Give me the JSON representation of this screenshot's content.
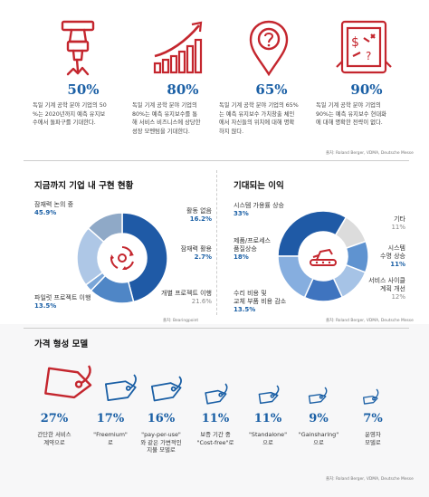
{
  "stats": [
    {
      "value": "50%",
      "desc": [
        "독일 기계 공학 분야 기업의 50",
        "%는 2020년까지 예측 유지보",
        "수에서 돌파구를 기대한다."
      ],
      "icon": "jackhammer-icon"
    },
    {
      "value": "80%",
      "desc": [
        "독일 기계 공학 분야 기업의",
        "80%는 예측 유지보수를 통",
        "해 서비스 비즈니스에 상당한",
        "성장 모멘텀을 기대한다."
      ],
      "icon": "growth-chart-icon"
    },
    {
      "value": "65%",
      "desc": [
        "독일 기계 공학 분야 기업의 65%",
        "는 예측 유지보수 가치창출 체인",
        "에서 자신들의 위치에 대해 명확",
        "하지 않다."
      ],
      "icon": "location-question-icon"
    },
    {
      "value": "90%",
      "desc": [
        "독일 기계 공학 분야 기업의",
        "90%는 예측 유지보수 현대화",
        "에 대해 명확한 전략이 없다."
      ],
      "icon": "tablet-strategy-icon"
    }
  ],
  "source_top": "출처: Roland Berger, VDMA, Deutsche Messe",
  "status_section": {
    "title": "지금까지 기업 내 구현 현황",
    "source": "출처: Bearingpoint"
  },
  "benefit_section": {
    "title": "기대되는 이익",
    "source": "출처: Roland Berger, VDMA, Deutsche Messe"
  },
  "pricing_section": {
    "title": "가격 형성 모델",
    "source": "출처: Roland Berger, VDMA, Deutsche Messe",
    "items": [
      {
        "value": "27%",
        "desc": [
          "간단한 서비스",
          "계약으로"
        ]
      },
      {
        "value": "17%",
        "desc": [
          "\"Freemium\"",
          "로"
        ]
      },
      {
        "value": "16%",
        "desc": [
          "\"pay-per-use\"",
          "와 같은 가변적인",
          "지불 모델로"
        ]
      },
      {
        "value": "11%",
        "desc": [
          "보증 기간 중",
          "\"Cost-free\"로"
        ]
      },
      {
        "value": "11%",
        "desc": [
          "\"Standalone\"",
          "으로"
        ]
      },
      {
        "value": "9%",
        "desc": [
          "\"Gainsharing\"",
          "으로"
        ]
      },
      {
        "value": "7%",
        "desc": [
          "운영자",
          "모델로"
        ]
      }
    ]
  },
  "chart_data": [
    {
      "type": "pie",
      "title": "지금까지 기업 내 구현 현황",
      "labels": [
        "잠재력 논의 중",
        "활동 없음",
        "잠재력 활용",
        "개별 프로젝트 이행",
        "파일럿 프로젝트 이행"
      ],
      "values": [
        45.9,
        16.2,
        2.7,
        21.6,
        13.5
      ],
      "display": [
        "45.9%",
        "16.2%",
        "2.7%",
        "21.6%",
        "13.5%"
      ],
      "colors": [
        "#1f5aa6",
        "#4f86c6",
        "#7aa6d8",
        "#aec7e6",
        "#8fa9c7"
      ]
    },
    {
      "type": "pie",
      "title": "기대되는 이익",
      "labels": [
        "시스템 가용률 상승",
        "기타",
        "시스템 수명 상승",
        "서비스 사이클 계획 개선",
        "수리 비용 및 교체 부품 비용 감소",
        "제품/프로세스 품질상승"
      ],
      "values": [
        33,
        11,
        11,
        12,
        13.5,
        18
      ],
      "display": [
        "33%",
        "11%",
        "11%",
        "12%",
        "13.5%",
        "18%"
      ],
      "colors": [
        "#1f5aa6",
        "#dcdcdc",
        "#5f93d0",
        "#a6c3e6",
        "#3f74bf",
        "#86aedf"
      ]
    }
  ],
  "pie_labels": {
    "left": [
      {
        "name": "잠재력 논의 중",
        "val": "45.9%"
      },
      {
        "name": "활동 없음",
        "val": "16.2%"
      },
      {
        "name": "잠재력 활용",
        "val": "2.7%"
      },
      {
        "name": "개별 프로젝트 이행",
        "val": "21.6%"
      },
      {
        "name": "파일럿 프로젝트 이행",
        "val": "13.5%"
      }
    ],
    "right": [
      {
        "name": "시스템 가용률 상승",
        "val": "33%"
      },
      {
        "name": "기타",
        "val": "11%"
      },
      {
        "name": [
          "시스템",
          "수명 상승"
        ],
        "val": "11%"
      },
      {
        "name": [
          "서비스 사이클",
          "계획 개선"
        ],
        "val": "12%"
      },
      {
        "name": [
          "수리 비용 및",
          "교체 부품 비용 감소"
        ],
        "val": "13.5%"
      },
      {
        "name": [
          "제품/프로세스",
          "품질상승"
        ],
        "val": "18%"
      }
    ]
  }
}
